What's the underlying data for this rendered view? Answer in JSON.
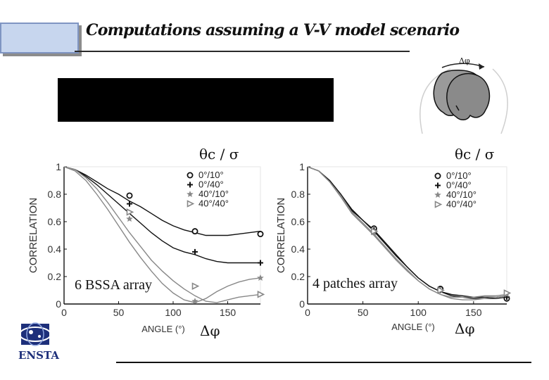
{
  "page": {
    "title": "Computations assuming a V-V model scenario",
    "diagram_label": "Δφ",
    "logo_text": "ENSTA"
  },
  "chart_data": [
    {
      "type": "line",
      "annotation": "6 BSSA array",
      "theta_label": "θc / σ",
      "dphi_label": "Δφ",
      "xlabel": "ANGLE (°)",
      "ylabel": "CORRELATION",
      "xlim": [
        0,
        180
      ],
      "ylim": [
        0,
        1
      ],
      "xticks": [
        0,
        50,
        100,
        150
      ],
      "yticks": [
        0,
        0.2,
        0.4,
        0.6,
        0.8,
        1
      ],
      "legend_position": "top-right",
      "grid": false,
      "series": [
        {
          "name": "0°/10°",
          "marker": "circle",
          "color": "#111111",
          "curve_x": [
            0,
            10,
            20,
            30,
            40,
            50,
            60,
            70,
            80,
            90,
            100,
            110,
            120,
            130,
            140,
            150,
            160,
            170,
            180
          ],
          "curve_y": [
            1,
            0.98,
            0.94,
            0.89,
            0.84,
            0.8,
            0.75,
            0.71,
            0.66,
            0.61,
            0.57,
            0.54,
            0.52,
            0.5,
            0.5,
            0.5,
            0.51,
            0.52,
            0.53
          ],
          "points_x": [
            60,
            120,
            180
          ],
          "points_y": [
            0.79,
            0.53,
            0.51
          ]
        },
        {
          "name": "0°/40°",
          "marker": "plus",
          "color": "#111111",
          "curve_x": [
            0,
            10,
            20,
            30,
            40,
            50,
            60,
            70,
            80,
            90,
            100,
            110,
            120,
            130,
            140,
            150,
            160,
            170,
            180
          ],
          "curve_y": [
            1,
            0.98,
            0.93,
            0.87,
            0.8,
            0.73,
            0.66,
            0.59,
            0.52,
            0.46,
            0.41,
            0.38,
            0.36,
            0.33,
            0.31,
            0.3,
            0.3,
            0.3,
            0.3
          ],
          "points_x": [
            60,
            120,
            180
          ],
          "points_y": [
            0.73,
            0.38,
            0.3
          ]
        },
        {
          "name": "40°/10°",
          "marker": "star",
          "color": "#888888",
          "curve_x": [
            0,
            10,
            20,
            30,
            40,
            50,
            60,
            70,
            80,
            90,
            100,
            110,
            120,
            130,
            140,
            150,
            160,
            170,
            180
          ],
          "curve_y": [
            1,
            0.97,
            0.9,
            0.8,
            0.69,
            0.57,
            0.45,
            0.34,
            0.24,
            0.15,
            0.08,
            0.03,
            0.01,
            0.04,
            0.09,
            0.13,
            0.16,
            0.18,
            0.19
          ],
          "points_x": [
            60,
            120,
            180
          ],
          "points_y": [
            0.62,
            0.02,
            0.19
          ]
        },
        {
          "name": "40°/40°",
          "marker": "triangle",
          "color": "#888888",
          "curve_x": [
            0,
            10,
            20,
            30,
            40,
            50,
            60,
            70,
            80,
            90,
            100,
            110,
            120,
            130,
            140,
            150,
            160,
            170,
            180
          ],
          "curve_y": [
            1,
            0.98,
            0.92,
            0.84,
            0.74,
            0.63,
            0.52,
            0.42,
            0.32,
            0.24,
            0.17,
            0.11,
            0.06,
            0.02,
            0.01,
            0.03,
            0.05,
            0.06,
            0.07
          ],
          "points_x": [
            60,
            120,
            180
          ],
          "points_y": [
            0.67,
            0.13,
            0.07
          ]
        }
      ]
    },
    {
      "type": "line",
      "annotation": "4 patches array",
      "theta_label": "θc / σ",
      "dphi_label": "Δφ",
      "xlabel": "ANGLE (°)",
      "ylabel": "CORRELATION",
      "xlim": [
        0,
        180
      ],
      "ylim": [
        0,
        1
      ],
      "xticks": [
        0,
        50,
        100,
        150
      ],
      "yticks": [
        0,
        0.2,
        0.4,
        0.6,
        0.8,
        1
      ],
      "legend_position": "top-right",
      "grid": false,
      "series": [
        {
          "name": "0°/10°",
          "marker": "circle",
          "color": "#111111",
          "curve_x": [
            0,
            10,
            20,
            30,
            40,
            50,
            60,
            70,
            80,
            90,
            100,
            110,
            120,
            130,
            140,
            150,
            160,
            170,
            180
          ],
          "curve_y": [
            1,
            0.97,
            0.9,
            0.8,
            0.68,
            0.61,
            0.54,
            0.45,
            0.36,
            0.27,
            0.19,
            0.13,
            0.09,
            0.06,
            0.05,
            0.04,
            0.04,
            0.04,
            0.05
          ],
          "points_x": [
            60,
            120,
            180
          ],
          "points_y": [
            0.55,
            0.11,
            0.04
          ]
        },
        {
          "name": "0°/40°",
          "marker": "plus",
          "color": "#111111",
          "curve_x": [
            0,
            10,
            20,
            30,
            40,
            50,
            60,
            70,
            80,
            90,
            100,
            110,
            120,
            130,
            140,
            150,
            160,
            170,
            180
          ],
          "curve_y": [
            1,
            0.97,
            0.9,
            0.8,
            0.69,
            0.61,
            0.53,
            0.44,
            0.35,
            0.27,
            0.19,
            0.13,
            0.09,
            0.07,
            0.06,
            0.05,
            0.05,
            0.05,
            0.06
          ],
          "points_x": [
            60,
            120,
            180
          ],
          "points_y": [
            0.54,
            0.1,
            0.05
          ]
        },
        {
          "name": "40°/10°",
          "marker": "star",
          "color": "#888888",
          "curve_x": [
            0,
            10,
            20,
            30,
            40,
            50,
            60,
            70,
            80,
            90,
            100,
            110,
            120,
            130,
            140,
            150,
            160,
            170,
            180
          ],
          "curve_y": [
            1,
            0.97,
            0.89,
            0.79,
            0.67,
            0.59,
            0.51,
            0.42,
            0.33,
            0.25,
            0.17,
            0.11,
            0.07,
            0.04,
            0.03,
            0.03,
            0.04,
            0.05,
            0.06
          ],
          "points_x": [
            60,
            120,
            180
          ],
          "points_y": [
            0.52,
            0.1,
            0.07
          ]
        },
        {
          "name": "40°/40°",
          "marker": "triangle",
          "color": "#888888",
          "curve_x": [
            0,
            10,
            20,
            30,
            40,
            50,
            60,
            70,
            80,
            90,
            100,
            110,
            120,
            130,
            140,
            150,
            160,
            170,
            180
          ],
          "curve_y": [
            1,
            0.97,
            0.89,
            0.78,
            0.66,
            0.58,
            0.5,
            0.41,
            0.32,
            0.24,
            0.17,
            0.11,
            0.07,
            0.05,
            0.05,
            0.05,
            0.06,
            0.06,
            0.07
          ],
          "points_x": [
            60,
            120,
            180
          ],
          "points_y": [
            0.53,
            0.1,
            0.08
          ]
        }
      ]
    }
  ]
}
